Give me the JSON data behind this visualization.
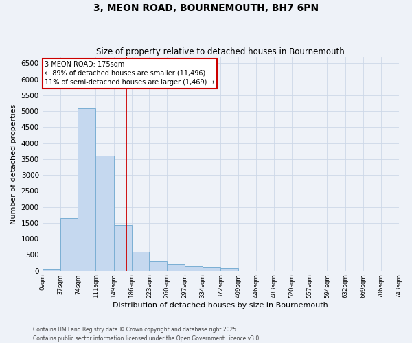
{
  "title": "3, MEON ROAD, BOURNEMOUTH, BH7 6PN",
  "subtitle": "Size of property relative to detached houses in Bournemouth",
  "xlabel": "Distribution of detached houses by size in Bournemouth",
  "ylabel": "Number of detached properties",
  "bar_edges": [
    0,
    37,
    74,
    111,
    149,
    186,
    223,
    260,
    297,
    334,
    372,
    409,
    446,
    483,
    520,
    557,
    594,
    632,
    669,
    706,
    743
  ],
  "bar_heights": [
    50,
    1650,
    5100,
    3600,
    1430,
    600,
    300,
    200,
    155,
    115,
    90,
    0,
    0,
    0,
    0,
    0,
    0,
    0,
    0,
    0
  ],
  "bar_color": "#c5d8ef",
  "bar_edge_color": "#7bafd4",
  "grid_color": "#cdd8e8",
  "vline_x": 175,
  "vline_color": "#cc0000",
  "annotation_text": "3 MEON ROAD: 175sqm\n← 89% of detached houses are smaller (11,496)\n11% of semi-detached houses are larger (1,469) →",
  "annotation_box_color": "#cc0000",
  "ylim": [
    0,
    6700
  ],
  "yticks": [
    0,
    500,
    1000,
    1500,
    2000,
    2500,
    3000,
    3500,
    4000,
    4500,
    5000,
    5500,
    6000,
    6500
  ],
  "footnote": "Contains HM Land Registry data © Crown copyright and database right 2025.\nContains public sector information licensed under the Open Government Licence v3.0.",
  "bg_color": "#eef2f8",
  "plot_bg_color": "#eef2f8",
  "fig_width": 6.0,
  "fig_height": 5.0
}
